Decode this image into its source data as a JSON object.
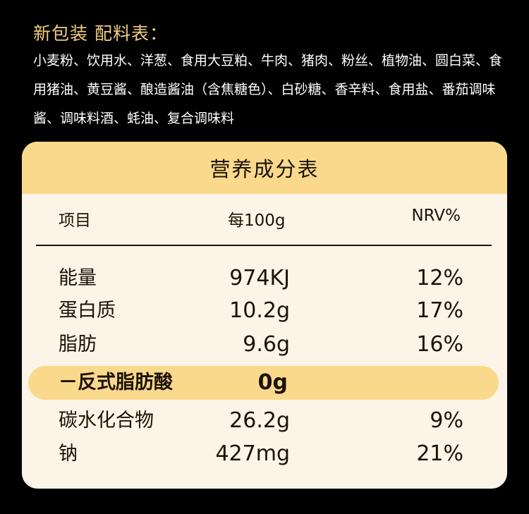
{
  "ingredients": {
    "title": "新包装 配料表：",
    "text": "小麦粉、饮用水、洋葱、食用大豆粕、牛肉、猪肉、粉丝、植物油、圆白菜、食用猪油、黄豆酱、酿造酱油（含焦糖色）、白砂糖、香辛料、食用盐、番茄调味酱、调味料酒、蚝油、复合调味料"
  },
  "nutrition_table": {
    "title": "营养成分表",
    "headers": [
      "项目",
      "每100g",
      "NRV%"
    ],
    "rows": [
      {
        "name": "能量",
        "value": "974KJ",
        "nrv": "12%"
      },
      {
        "name": "蛋白质",
        "value": "10.2g",
        "nrv": "17%"
      },
      {
        "name": "脂肪",
        "value": "9.6g",
        "nrv": "16%"
      },
      {
        "name": "－反式脂肪酸",
        "value": "0g",
        "nrv": ""
      },
      {
        "name": "碳水化合物",
        "value": "26.2g",
        "nrv": "9%"
      },
      {
        "name": "钠",
        "value": "427mg",
        "nrv": "21%"
      }
    ]
  },
  "colors": {
    "background": "#000000",
    "title_gold": "#f2cd80",
    "card_bg": "#fcf4e7",
    "accent_yellow": "#fbd98c",
    "text_dark": "#1b1208"
  }
}
